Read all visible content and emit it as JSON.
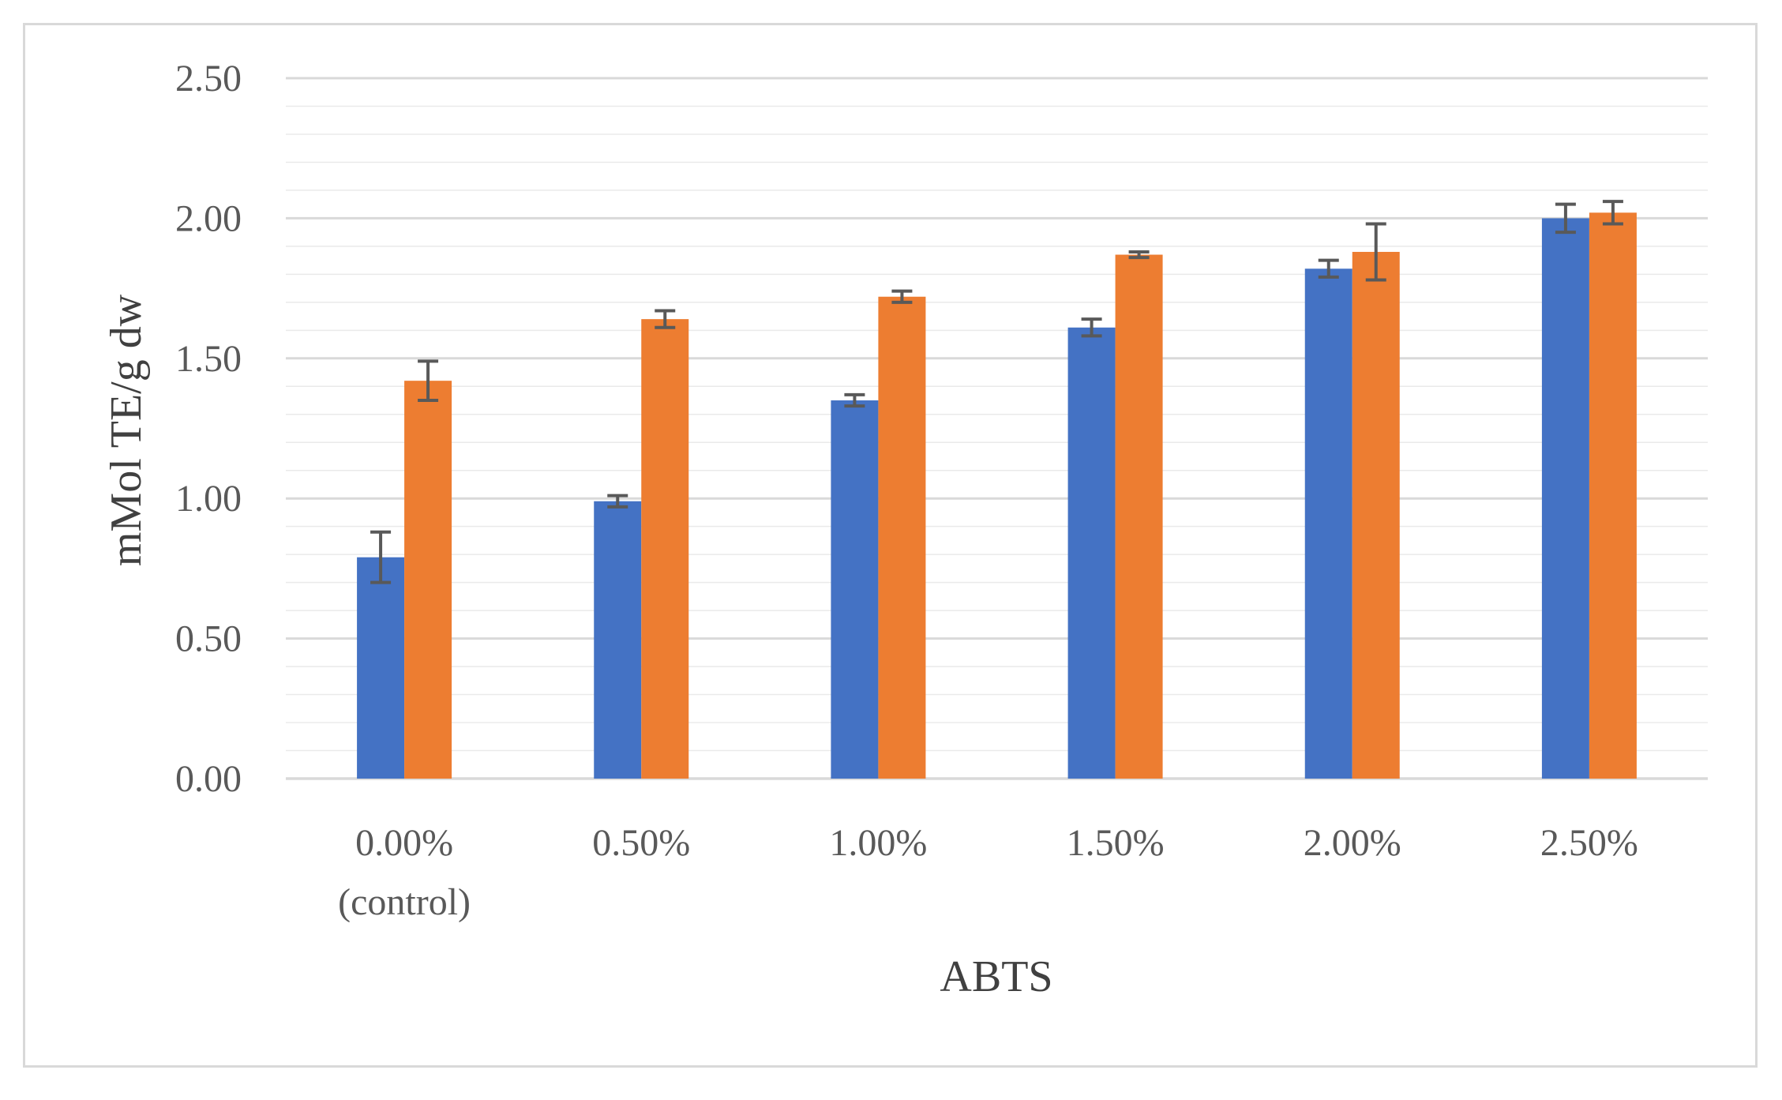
{
  "chart_data": {
    "type": "bar",
    "title": "",
    "xlabel": "ABTS",
    "ylabel": "mMol TE/g dw",
    "categories": [
      [
        "0.00%",
        "(control)"
      ],
      [
        "0.50%"
      ],
      [
        "1.00%"
      ],
      [
        "1.50%"
      ],
      [
        "2.00%"
      ],
      [
        "2.50%"
      ]
    ],
    "ylim": [
      0,
      2.5
    ],
    "y_major_ticks": [
      "0.00",
      "0.50",
      "1.00",
      "1.50",
      "2.00",
      "2.50"
    ],
    "y_major_step": 0.5,
    "y_minor_step": 0.1,
    "grid": true,
    "legend": "none",
    "series": [
      {
        "color": "#4472c4",
        "values": [
          0.79,
          0.99,
          1.35,
          1.61,
          1.82,
          2.0
        ],
        "errors": [
          0.09,
          0.02,
          0.02,
          0.03,
          0.03,
          0.05
        ]
      },
      {
        "color": "#ed7d31",
        "values": [
          1.42,
          1.64,
          1.72,
          1.87,
          1.88,
          2.02
        ],
        "errors": [
          0.07,
          0.03,
          0.02,
          0.01,
          0.1,
          0.04
        ]
      }
    ],
    "error_bar_color": "#595959",
    "grid_color": "#d9d9d9"
  }
}
